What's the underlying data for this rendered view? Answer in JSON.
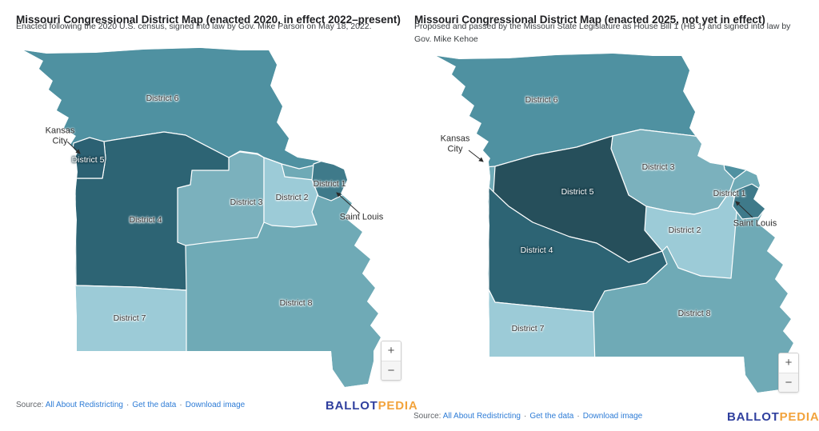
{
  "panels": [
    {
      "id": "map-2022",
      "title": "Missouri Congressional District Map (enacted 2020, in effect 2022–present)",
      "subtitle": "Enacted following the 2020 U.S. census, signed into law by Gov. Mike Parson on May 18, 2022.",
      "districts": [
        {
          "id": "d1",
          "label": "District 1"
        },
        {
          "id": "d2",
          "label": "District 2"
        },
        {
          "id": "d3",
          "label": "District 3"
        },
        {
          "id": "d4",
          "label": "District 4"
        },
        {
          "id": "d5",
          "label": "District 5"
        },
        {
          "id": "d6",
          "label": "District 6"
        },
        {
          "id": "d7",
          "label": "District 7"
        },
        {
          "id": "d8",
          "label": "District 8"
        }
      ],
      "cities": [
        {
          "id": "kansas-city",
          "label": "Kansas City"
        },
        {
          "id": "saint-louis",
          "label": "Saint Louis"
        }
      ]
    },
    {
      "id": "map-2025",
      "title": "Missouri Congressional District Map (enacted 2025, not yet in effect)",
      "subtitle": "Proposed and passed by the Missouri State Legislature as House Bill 1 (HB 1) and signed into law by Gov. Mike Kehoe",
      "districts": [
        {
          "id": "d1",
          "label": "District 1"
        },
        {
          "id": "d2",
          "label": "District 2"
        },
        {
          "id": "d3",
          "label": "District 3"
        },
        {
          "id": "d4",
          "label": "District 4"
        },
        {
          "id": "d5",
          "label": "District 5"
        },
        {
          "id": "d6",
          "label": "District 6"
        },
        {
          "id": "d7",
          "label": "District 7"
        },
        {
          "id": "d8",
          "label": "District 8"
        }
      ],
      "cities": [
        {
          "id": "kansas-city",
          "label": "Kansas City"
        },
        {
          "id": "saint-louis",
          "label": "Saint Louis"
        }
      ]
    }
  ],
  "zoom_control": {
    "zoom_in_label": "+",
    "zoom_out_label": "−"
  },
  "footer": {
    "source_label": "Source:",
    "separator": "·",
    "links": [
      "All About Redistricting",
      "Get the data",
      "Download image"
    ]
  },
  "logo": {
    "ballot": "BALLOT",
    "pedia": "PEDIA"
  },
  "colors": {
    "page_background": "#ffffff",
    "title_text": "#202124",
    "subtitle_text": "#3c4043",
    "label_dark": "#333333",
    "label_light": "#ffffff",
    "link_blue": "#2e7cd6",
    "source_gray": "#5f6368",
    "logo_blue": "#2f3f9e",
    "logo_orange": "#f2a33c",
    "district_fills": {
      "map-2022": {
        "d1": "#3f7a8a",
        "d2": "#9ccbd7",
        "d3": "#7bb1bd",
        "d4": "#2d6474",
        "d5": "#2c6173",
        "d6": "#4f91a1",
        "d7": "#9ccbd7",
        "d8": "#6faab6"
      },
      "map-2025": {
        "d1": "#3f7a8a",
        "d2": "#9ccbd7",
        "d3": "#7bb1bd",
        "d4": "#2d6474",
        "d5": "#264f5b",
        "d6": "#4f91a1",
        "d7": "#9ccbd7",
        "d8": "#6faab6"
      }
    }
  }
}
